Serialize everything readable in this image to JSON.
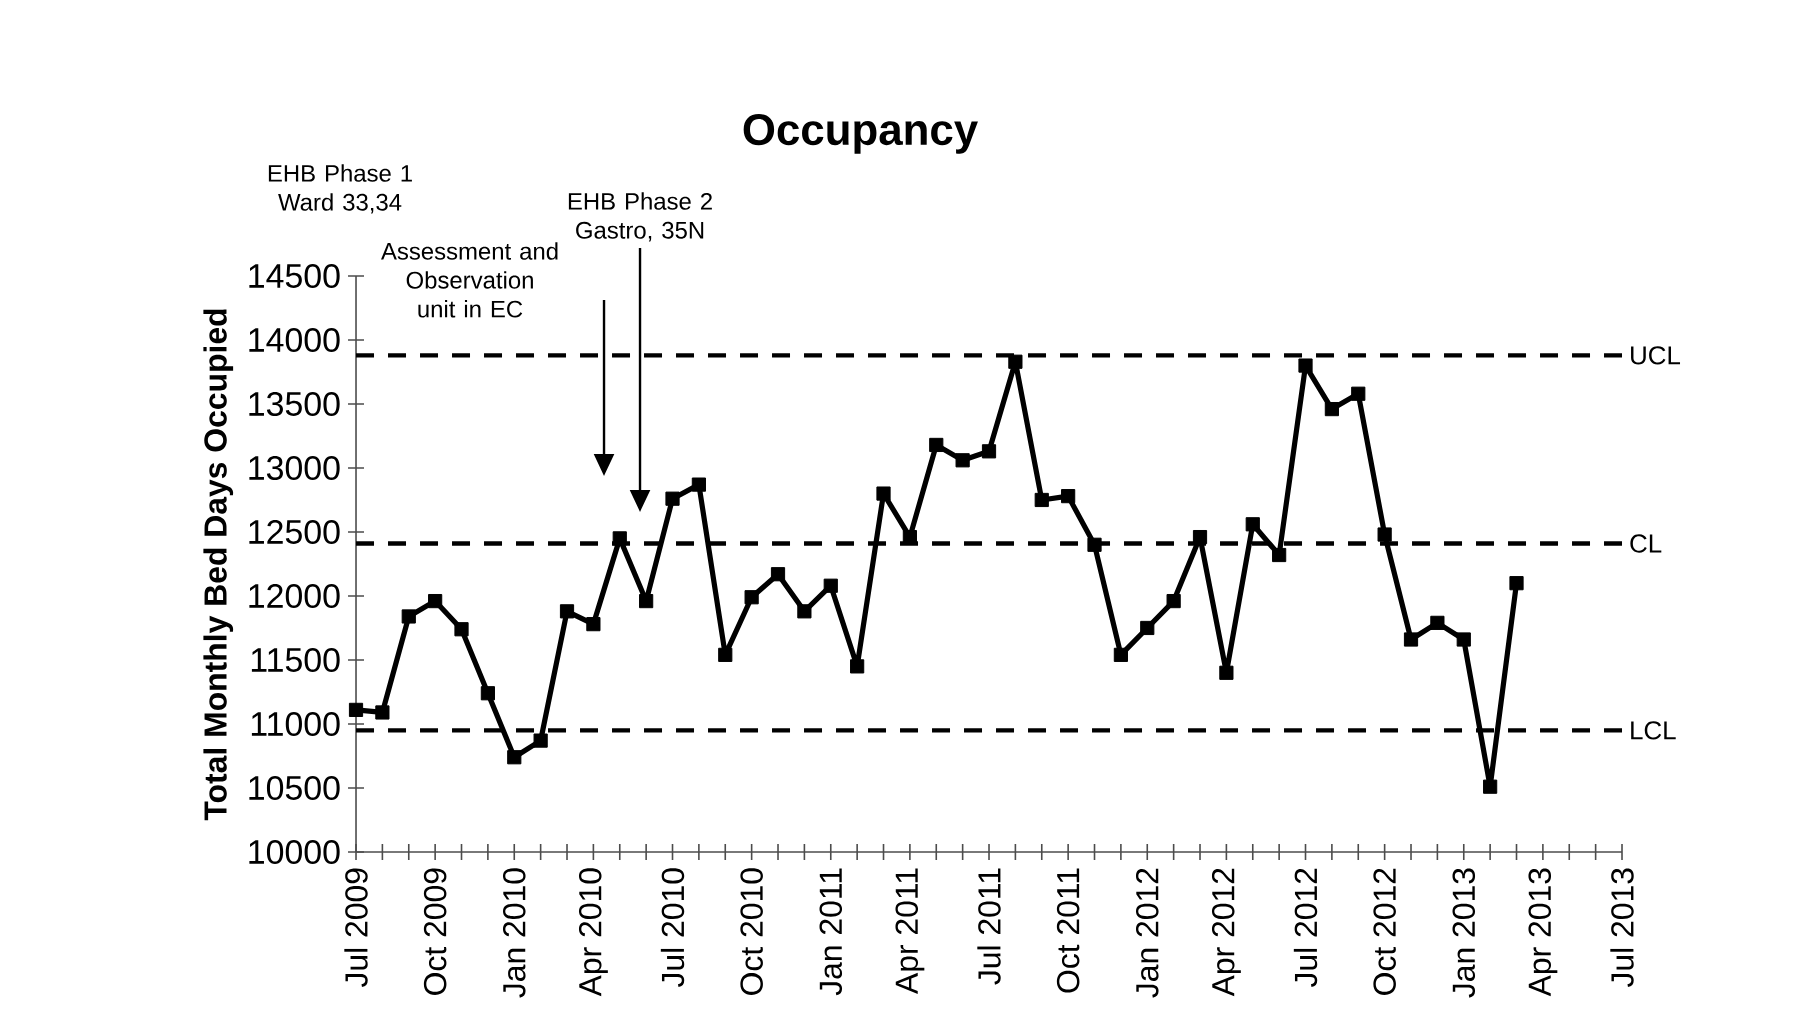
{
  "chart_data": {
    "type": "line",
    "title": "Occupancy",
    "ylabel": "Total Monthly Bed Days Occupied",
    "x": [
      "2009-07",
      "2009-08",
      "2009-09",
      "2009-10",
      "2009-11",
      "2009-12",
      "2010-01",
      "2010-02",
      "2010-03",
      "2010-04",
      "2010-05",
      "2010-06",
      "2010-07",
      "2010-08",
      "2010-09",
      "2010-10",
      "2010-11",
      "2010-12",
      "2011-01",
      "2011-02",
      "2011-03",
      "2011-04",
      "2011-05",
      "2011-06",
      "2011-07",
      "2011-08",
      "2011-09",
      "2011-10",
      "2011-11",
      "2011-12",
      "2012-01",
      "2012-02",
      "2012-03",
      "2012-04",
      "2012-05",
      "2012-06",
      "2012-07",
      "2012-08",
      "2012-09",
      "2012-10",
      "2012-11",
      "2012-12",
      "2013-01",
      "2013-02",
      "2013-03"
    ],
    "series": [
      {
        "color": "#000000",
        "values": [
          11110,
          11090,
          11840,
          11960,
          11740,
          11240,
          10740,
          10870,
          11880,
          11780,
          12450,
          11960,
          12760,
          12870,
          11540,
          11990,
          12170,
          11880,
          12080,
          11450,
          12800,
          12460,
          13180,
          13060,
          13130,
          13830,
          12750,
          12780,
          12400,
          11540,
          11750,
          11960,
          12460,
          11400,
          12560,
          12320,
          13800,
          13460,
          13580,
          12480,
          11660,
          11790,
          11660,
          10510,
          12100
        ]
      }
    ],
    "marker": "square",
    "line_style": "solid",
    "grid": false,
    "xlim": [
      "2009-07",
      "2013-07"
    ],
    "xticks": [
      {
        "value": "2009-07",
        "label": "Jul 2009"
      },
      {
        "value": "2009-08",
        "label": null
      },
      {
        "value": "2009-09",
        "label": null
      },
      {
        "value": "2009-10",
        "label": "Oct 2009"
      },
      {
        "value": "2009-11",
        "label": null
      },
      {
        "value": "2009-12",
        "label": null
      },
      {
        "value": "2010-01",
        "label": "Jan 2010"
      },
      {
        "value": "2010-02",
        "label": null
      },
      {
        "value": "2010-03",
        "label": null
      },
      {
        "value": "2010-04",
        "label": "Apr 2010"
      },
      {
        "value": "2010-05",
        "label": null
      },
      {
        "value": "2010-06",
        "label": null
      },
      {
        "value": "2010-07",
        "label": "Jul 2010"
      },
      {
        "value": "2010-08",
        "label": null
      },
      {
        "value": "2010-09",
        "label": null
      },
      {
        "value": "2010-10",
        "label": "Oct 2010"
      },
      {
        "value": "2010-11",
        "label": null
      },
      {
        "value": "2010-12",
        "label": null
      },
      {
        "value": "2011-01",
        "label": "Jan 2011"
      },
      {
        "value": "2011-02",
        "label": null
      },
      {
        "value": "2011-03",
        "label": null
      },
      {
        "value": "2011-04",
        "label": "Apr 2011"
      },
      {
        "value": "2011-05",
        "label": null
      },
      {
        "value": "2011-06",
        "label": null
      },
      {
        "value": "2011-07",
        "label": "Jul 2011"
      },
      {
        "value": "2011-08",
        "label": null
      },
      {
        "value": "2011-09",
        "label": null
      },
      {
        "value": "2011-10",
        "label": "Oct 2011"
      },
      {
        "value": "2011-11",
        "label": null
      },
      {
        "value": "2011-12",
        "label": null
      },
      {
        "value": "2012-01",
        "label": "Jan 2012"
      },
      {
        "value": "2012-02",
        "label": null
      },
      {
        "value": "2012-03",
        "label": null
      },
      {
        "value": "2012-04",
        "label": "Apr 2012"
      },
      {
        "value": "2012-05",
        "label": null
      },
      {
        "value": "2012-06",
        "label": null
      },
      {
        "value": "2012-07",
        "label": "Jul 2012"
      },
      {
        "value": "2012-08",
        "label": null
      },
      {
        "value": "2012-09",
        "label": null
      },
      {
        "value": "2012-10",
        "label": "Oct 2012"
      },
      {
        "value": "2012-11",
        "label": null
      },
      {
        "value": "2012-12",
        "label": null
      },
      {
        "value": "2013-01",
        "label": "Jan 2013"
      },
      {
        "value": "2013-02",
        "label": null
      },
      {
        "value": "2013-03",
        "label": null
      },
      {
        "value": "2013-04",
        "label": "Apr 2013"
      },
      {
        "value": "2013-05",
        "label": null
      },
      {
        "value": "2013-06",
        "label": null
      },
      {
        "value": "2013-07",
        "label": "Jul 2013"
      }
    ],
    "ylim": [
      10000,
      14500
    ],
    "yticks": [
      10000,
      10500,
      11000,
      11500,
      12000,
      12500,
      13000,
      13500,
      14000,
      14500
    ],
    "ref_lines": [
      {
        "axis": "y",
        "value": 13880,
        "label": "UCL",
        "color": "#000000",
        "line_style": "dashed"
      },
      {
        "axis": "y",
        "value": 12410,
        "label": "CL",
        "color": "#000000",
        "line_style": "dashed"
      },
      {
        "axis": "y",
        "value": 10950,
        "label": "LCL",
        "color": "#000000",
        "line_style": "dashed"
      }
    ],
    "annotations": [
      "EHB Phase 1 Ward 33,34",
      "Assessment and Observation unit in EC",
      "EHB Phase 2 Gastro, 35N"
    ]
  }
}
